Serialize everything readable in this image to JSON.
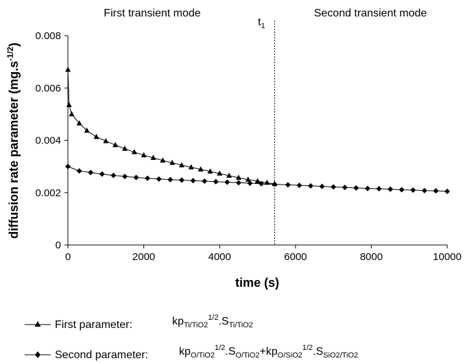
{
  "chart_data": {
    "type": "line",
    "xlabel": "time (s)",
    "ylabel": {
      "main": "diffusion rate parameter (mg.s",
      "sup": "-1/2",
      "close": ")"
    },
    "xlim": [
      0,
      10000
    ],
    "ylim": [
      0,
      0.008
    ],
    "x_ticks": [
      0,
      2000,
      4000,
      6000,
      8000,
      10000
    ],
    "y_ticks": [
      "0",
      "0.002",
      "0.004",
      "0.006",
      "0.008"
    ],
    "y_tick_values": [
      0,
      0.002,
      0.004,
      0.006,
      0.008
    ],
    "grid": false,
    "legend_position": "bottom",
    "annotations": {
      "mode_left": "First transient mode",
      "mode_right": "Second transient mode",
      "t1_base": "t",
      "t1_sub": "1",
      "t1_x": 5450
    },
    "series": [
      {
        "name": "First parameter:",
        "marker": "triangle",
        "formula": [
          {
            "t": "kp"
          },
          {
            "t": "Ti/TiO2",
            "s": "sub"
          },
          {
            "t": "1/2",
            "s": "sup"
          },
          {
            "t": ".S"
          },
          {
            "t": "Ti/TiO2",
            "s": "sub"
          }
        ],
        "x": [
          0,
          30,
          100,
          300,
          500,
          750,
          1000,
          1250,
          1500,
          1750,
          2000,
          2250,
          2500,
          2750,
          3000,
          3250,
          3500,
          3750,
          4000,
          4250,
          4500,
          4750,
          5000,
          5250,
          5450
        ],
        "y": [
          0.0067,
          0.00535,
          0.005,
          0.00465,
          0.00437,
          0.00413,
          0.00397,
          0.00382,
          0.00368,
          0.00355,
          0.00343,
          0.00333,
          0.00323,
          0.00314,
          0.00305,
          0.00297,
          0.00289,
          0.00281,
          0.00273,
          0.00265,
          0.00257,
          0.0025,
          0.00244,
          0.00238,
          0.00233
        ]
      },
      {
        "name": "Second parameter:",
        "marker": "diamond",
        "formula": [
          {
            "t": "kp"
          },
          {
            "t": "O/TiO2",
            "s": "sub"
          },
          {
            "t": "1/2",
            "s": "sup"
          },
          {
            "t": ".S"
          },
          {
            "t": "O/TiO2",
            "s": "sub"
          },
          {
            "t": "+kp"
          },
          {
            "t": "O/SiO2",
            "s": "sub"
          },
          {
            "t": "1/2",
            "s": "sup"
          },
          {
            "t": ".S"
          },
          {
            "t": "SiO2/TiO2",
            "s": "sub"
          }
        ],
        "x": [
          0,
          300,
          600,
          900,
          1200,
          1500,
          1800,
          2100,
          2400,
          2700,
          3000,
          3300,
          3600,
          3900,
          4200,
          4500,
          4800,
          5100,
          5450,
          5800,
          6100,
          6400,
          6700,
          7000,
          7300,
          7600,
          7900,
          8200,
          8500,
          8800,
          9100,
          9400,
          9700,
          10000
        ],
        "y": [
          0.003,
          0.00283,
          0.00277,
          0.00271,
          0.00266,
          0.00262,
          0.00258,
          0.00255,
          0.00252,
          0.0025,
          0.00248,
          0.00246,
          0.00244,
          0.00242,
          0.0024,
          0.00238,
          0.00236,
          0.00234,
          0.00232,
          0.0023,
          0.00228,
          0.00226,
          0.00224,
          0.00222,
          0.0022,
          0.00218,
          0.00216,
          0.00215,
          0.00213,
          0.00211,
          0.0021,
          0.00208,
          0.00207,
          0.00205
        ]
      }
    ]
  }
}
